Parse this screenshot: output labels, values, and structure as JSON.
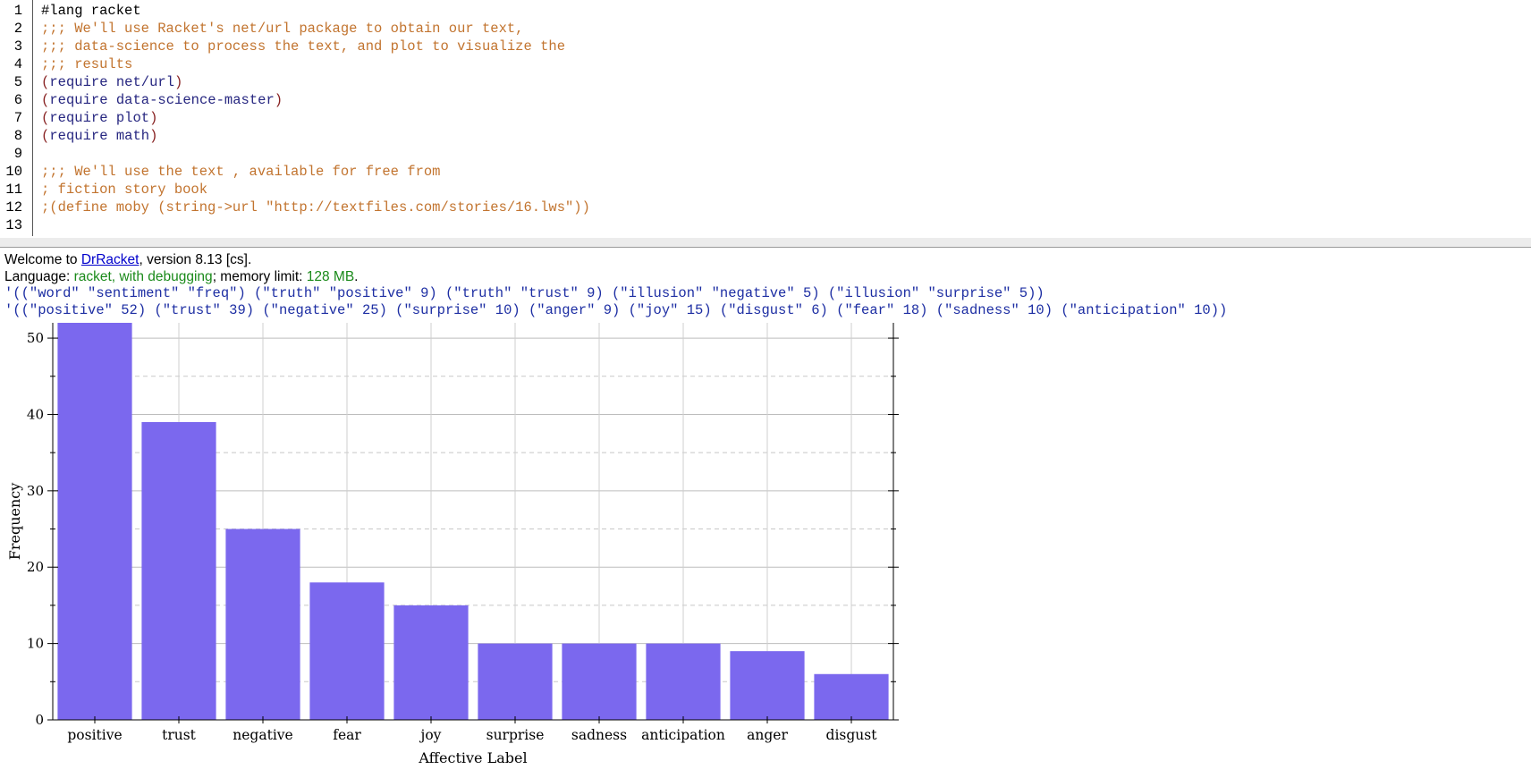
{
  "editor": {
    "line_numbers": [
      "1",
      "2",
      "3",
      "4",
      "5",
      "6",
      "7",
      "8",
      "9",
      "10",
      "11",
      "12",
      "13"
    ],
    "lines": [
      "#lang racket",
      ";;; We'll use Racket's net/url package to obtain our text,",
      ";;; data-science to process the text, and plot to visualize the",
      ";;; results",
      "(require net/url)",
      "(require data-science-master)",
      "(require plot)",
      "(require math)",
      "",
      ";;; We'll use the text , available for free from",
      "; fiction story book",
      ";(define moby (string->url \"http://textfiles.com/stories/16.lws\"))",
      ""
    ]
  },
  "repl": {
    "welcome_prefix": "Welcome to ",
    "welcome_link": "DrRacket",
    "welcome_suffix": ", version 8.13 [cs].",
    "language_prefix": "Language: ",
    "language_value": "racket, with debugging",
    "memory_prefix": "; memory limit: ",
    "memory_value": "128 MB",
    "memory_suffix": ".",
    "output_1": "'((\"word\" \"sentiment\" \"freq\") (\"truth\" \"positive\" 9) (\"truth\" \"trust\" 9) (\"illusion\" \"negative\" 5) (\"illusion\" \"surprise\" 5))",
    "output_2": "'((\"positive\" 52) (\"trust\" 39) (\"negative\" 25) (\"surprise\" 10) (\"anger\" 9) (\"joy\" 15) (\"disgust\" 6) (\"fear\" 18) (\"sadness\" 10) (\"anticipation\" 10))"
  },
  "chart_data": {
    "type": "bar",
    "categories": [
      "positive",
      "trust",
      "negative",
      "fear",
      "joy",
      "surprise",
      "sadness",
      "anticipation",
      "anger",
      "disgust"
    ],
    "values": [
      52,
      39,
      25,
      18,
      15,
      10,
      10,
      10,
      9,
      6
    ],
    "xlabel": "Affective Label",
    "ylabel": "Frequency",
    "ylim": [
      0,
      52
    ],
    "yticks": [
      0,
      10,
      20,
      30,
      40,
      50
    ],
    "grid": true,
    "bar_color": "#7b68ee"
  }
}
